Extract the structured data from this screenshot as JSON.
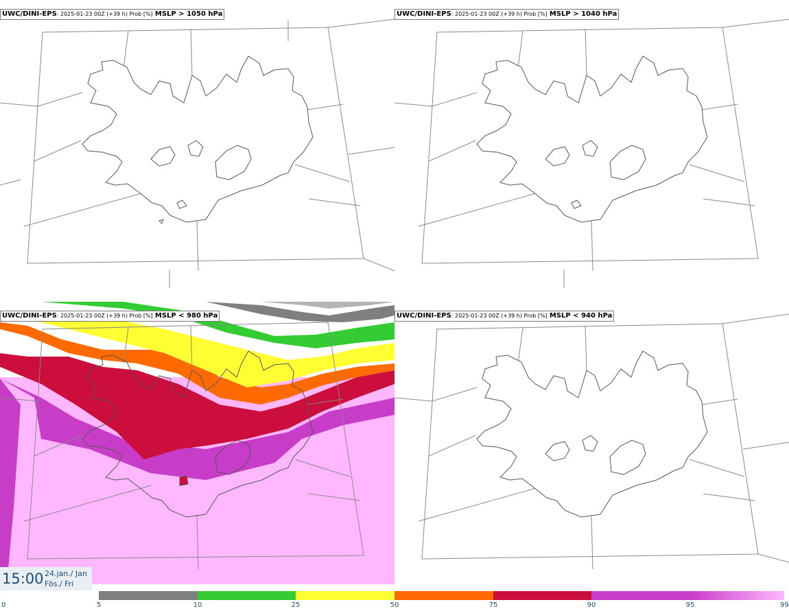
{
  "panels": [
    {
      "model": "UWC/DINI-EPS",
      "run": ": 2025-01-23 00Z (+39 h) Prob [%]",
      "var": "MSLP > 1050 hPa"
    },
    {
      "model": "UWC/DINI-EPS",
      "run": ": 2025-01-23 00Z (+39 h) Prob [%]",
      "var": "MSLP > 1040 hPa"
    },
    {
      "model": "UWC/DINI-EPS",
      "run": ": 2025-01-23 00Z (+39 h) Prob [%]",
      "var": "MSLP < 980 hPa"
    },
    {
      "model": "UWC/DINI-EPS",
      "run": ": 2025-01-23 00Z (+39 h) Prob [%]",
      "var": "MSLP < 940 hPa"
    }
  ],
  "time": {
    "clock": "15:00",
    "date_line1": "24.jan./ Jan",
    "date_line2": "Fös./ Fri"
  },
  "colorbar": {
    "ticks": [
      "0",
      "5",
      "10",
      "25",
      "50",
      "75",
      "90",
      "95",
      "99"
    ],
    "colors": [
      "#ffffff",
      "#b4b4b4",
      "#7f7f7f",
      "#33cc33",
      "#ffff33",
      "#ff6a00",
      "#cc0e3c",
      "#c83dc8",
      "#ffb7ff"
    ]
  },
  "colors": {
    "map_line": "#888888",
    "coast": "#555555",
    "label_text": "#1e4b73"
  }
}
